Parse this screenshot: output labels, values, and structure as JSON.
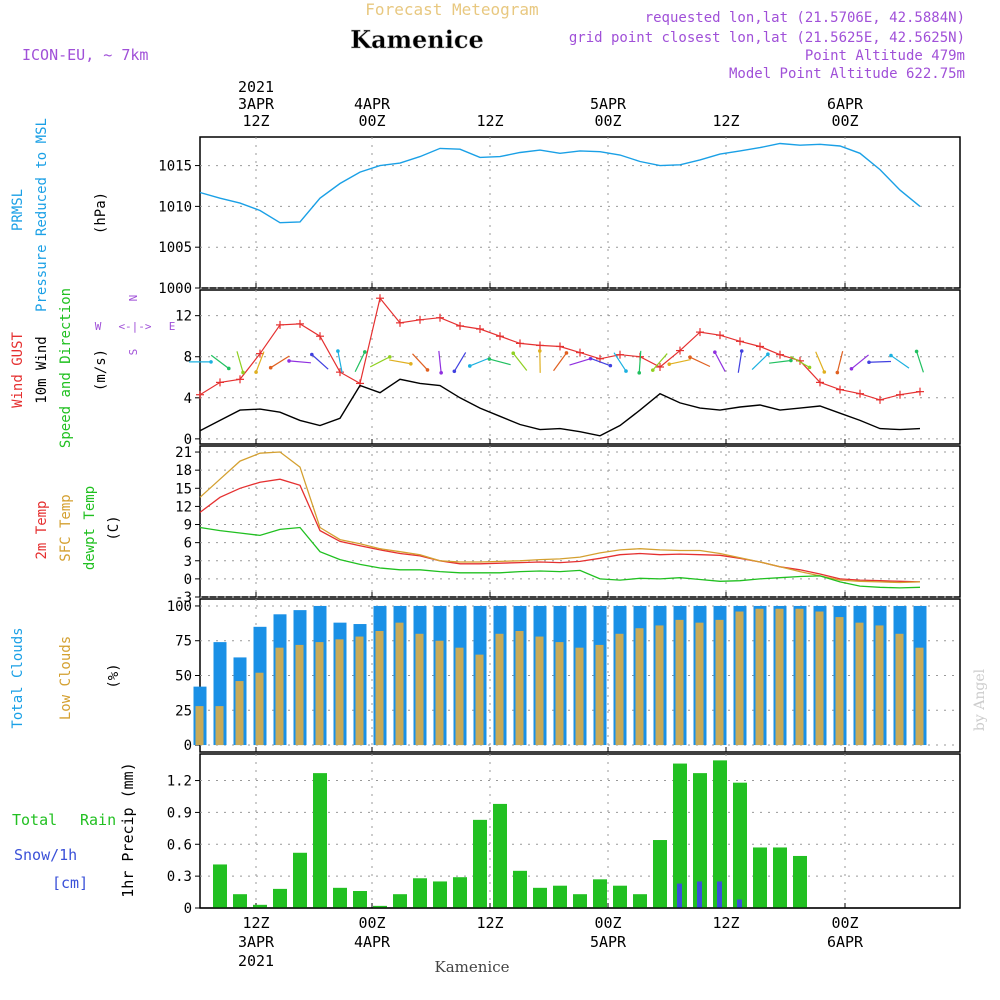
{
  "header": {
    "title": "Forecast Meteogram",
    "location": "Kamenice",
    "model": "ICON-EU, ~ 7km",
    "requested": "requested lon,lat (21.5706E, 42.5884N)",
    "gridpoint": "grid point closest lon,lat (21.5625E, 42.5625N)",
    "point_alt": "Point Altitude 479m",
    "model_alt": "Model Point Altitude 622.75m",
    "footer_name": "Kamenice",
    "watermark": "by Angel",
    "compass": {
      "n": "N",
      "s": "S",
      "w": "W",
      "e": "E",
      "arrows": "<-|->"
    }
  },
  "time_axis": {
    "top": [
      {
        "line1": "2021",
        "line2": "3APR",
        "line3": "12Z"
      },
      {
        "line1": "",
        "line2": "4APR",
        "line3": "00Z"
      },
      {
        "line1": "",
        "line2": "",
        "line3": "12Z"
      },
      {
        "line1": "",
        "line2": "5APR",
        "line3": "00Z"
      },
      {
        "line1": "",
        "line2": "",
        "line3": "12Z"
      },
      {
        "line1": "",
        "line2": "6APR",
        "line3": "00Z"
      }
    ],
    "bottom": [
      {
        "line1": "12Z",
        "line2": "3APR",
        "line3": "2021"
      },
      {
        "line1": "00Z",
        "line2": "4APR",
        "line3": ""
      },
      {
        "line1": "12Z",
        "line2": "",
        "line3": ""
      },
      {
        "line1": "00Z",
        "line2": "5APR",
        "line3": ""
      },
      {
        "line1": "12Z",
        "line2": "",
        "line3": ""
      },
      {
        "line1": "00Z",
        "line2": "6APR",
        "line3": ""
      }
    ]
  },
  "labels": {
    "p1": {
      "l1": "PRMSL",
      "l2": "Pressure Reduced to MSL",
      "unit": "(hPa)"
    },
    "p2": {
      "l1": "Wind GUST",
      "l2": "10m Wind",
      "l3": "Speed and Direction",
      "unit": "(m/s)"
    },
    "p3": {
      "l1": "2m Temp",
      "l2": "SFC Temp",
      "l3": "dewpt Temp",
      "unit": "(C)"
    },
    "p4": {
      "l1": "Total Clouds",
      "l2": "Low Clouds",
      "unit": "(%)"
    },
    "p5": {
      "l1": "Total",
      "l1b": "Rain",
      "l2": "Snow/1h",
      "l3": "[cm]",
      "unit": "1hr Precip (mm)"
    }
  },
  "colors": {
    "pressure": "#1aa0e6",
    "gust": "#e53030",
    "wind": "#000000",
    "t2m": "#e53030",
    "sfc": "#d4a030",
    "dew": "#20c020",
    "total_cloud": "#1a90e6",
    "low_cloud": "#c8aa58",
    "rain": "#22c022",
    "snow": "#3a50d8",
    "purple": "#a050d8",
    "title": "#e8c880"
  },
  "chart_data": [
    {
      "type": "line",
      "name": "pressure",
      "x_hours": [
        0,
        3,
        6,
        9,
        12,
        15,
        18,
        21,
        24,
        27,
        30,
        33,
        36,
        39,
        42,
        45,
        48,
        51,
        54,
        57,
        60,
        63,
        66,
        69,
        72,
        75,
        78,
        81,
        84,
        87,
        90,
        93,
        96,
        99,
        102,
        105,
        108
      ],
      "series": [
        {
          "values": [
            1011.7,
            1011.0,
            1010.4,
            1009.5,
            1008.0,
            1008.1,
            1011.0,
            1012.8,
            1014.2,
            1015.0,
            1015.3,
            1016.1,
            1017.1,
            1017.0,
            1016.0,
            1016.1,
            1016.6,
            1016.9,
            1016.5,
            1016.8,
            1016.7,
            1016.3,
            1015.5,
            1015.0,
            1015.1,
            1015.7,
            1016.4,
            1016.8,
            1017.2,
            1017.7,
            1017.5,
            1017.6,
            1017.4,
            1016.5,
            1014.5,
            1012.0,
            1010.0
          ]
        }
      ],
      "ylim": [
        1000,
        1018.5
      ],
      "yticks": [
        1000,
        1005,
        1010,
        1015
      ]
    },
    {
      "type": "line",
      "name": "wind",
      "x_hours": [
        0,
        3,
        6,
        9,
        12,
        15,
        18,
        21,
        24,
        27,
        30,
        33,
        36,
        39,
        42,
        45,
        48,
        51,
        54,
        57,
        60,
        63,
        66,
        69,
        72,
        75,
        78,
        81,
        84,
        87,
        90,
        93,
        96,
        99,
        102,
        105,
        108
      ],
      "series": [
        {
          "values": [
            4.3,
            5.5,
            5.8,
            8.3,
            11.1,
            11.2,
            10.0,
            6.5,
            5.4,
            13.7,
            11.3,
            11.6,
            11.8,
            11.0,
            10.7,
            10.0,
            9.3,
            9.1,
            9.0,
            8.4,
            7.8,
            8.2,
            8.0,
            7.0,
            8.6,
            10.4,
            10.1,
            9.5,
            9.0,
            8.2,
            7.6,
            5.5,
            4.8,
            4.4,
            3.8,
            4.3,
            4.6
          ]
        },
        {
          "values": [
            0.8,
            1.8,
            2.8,
            2.9,
            2.6,
            1.8,
            1.3,
            2.0,
            5.2,
            4.5,
            5.8,
            5.4,
            5.2,
            4.0,
            3.0,
            2.2,
            1.4,
            0.9,
            1.0,
            0.7,
            0.3,
            1.3,
            2.8,
            4.4,
            3.5,
            3.0,
            2.8,
            3.1,
            3.3,
            2.8,
            3.0,
            3.2,
            2.5,
            1.8,
            1.0,
            0.9,
            1.0
          ]
        }
      ],
      "ylim": [
        -0.5,
        14.5
      ],
      "yticks": [
        0,
        4,
        8,
        12
      ]
    },
    {
      "type": "line",
      "name": "temperature",
      "x_hours": [
        0,
        3,
        6,
        9,
        12,
        15,
        18,
        21,
        24,
        27,
        30,
        33,
        36,
        39,
        42,
        45,
        48,
        51,
        54,
        57,
        60,
        63,
        66,
        69,
        72,
        75,
        78,
        81,
        84,
        87,
        90,
        93,
        96,
        99,
        102,
        105,
        108
      ],
      "series": [
        {
          "values": [
            11.0,
            13.5,
            15.0,
            16.0,
            16.5,
            15.5,
            8.0,
            6.2,
            5.5,
            4.8,
            4.2,
            3.8,
            3.0,
            2.5,
            2.5,
            2.6,
            2.7,
            2.8,
            2.7,
            2.9,
            3.4,
            4.0,
            4.2,
            4.0,
            4.1,
            4.0,
            3.9,
            3.4,
            2.8,
            2.0,
            1.5,
            0.8,
            0.0,
            -0.2,
            -0.3,
            -0.4,
            -0.5
          ]
        },
        {
          "values": [
            13.5,
            16.5,
            19.5,
            20.8,
            21.0,
            18.5,
            8.5,
            6.5,
            5.8,
            5.0,
            4.5,
            4.0,
            3.0,
            2.8,
            2.8,
            2.9,
            3.0,
            3.2,
            3.3,
            3.6,
            4.3,
            4.8,
            5.0,
            4.8,
            4.7,
            4.7,
            4.2,
            3.5,
            2.8,
            2.0,
            1.2,
            0.5,
            -0.2,
            -0.4,
            -0.5,
            -0.6,
            -0.5
          ]
        },
        {
          "values": [
            8.5,
            8.0,
            7.6,
            7.2,
            8.2,
            8.5,
            4.5,
            3.2,
            2.4,
            1.8,
            1.5,
            1.5,
            1.2,
            1.0,
            1.0,
            1.0,
            1.2,
            1.3,
            1.2,
            1.4,
            0.0,
            -0.2,
            0.1,
            0.0,
            0.2,
            -0.1,
            -0.4,
            -0.3,
            0.0,
            0.2,
            0.4,
            0.5,
            -0.5,
            -1.2,
            -1.4,
            -1.5,
            -1.4
          ]
        }
      ],
      "ylim": [
        -3,
        22
      ],
      "yticks": [
        -3,
        0,
        3,
        6,
        9,
        12,
        15,
        18,
        21
      ]
    },
    {
      "type": "bar",
      "name": "clouds",
      "x_hours": [
        0,
        3,
        6,
        9,
        12,
        15,
        18,
        21,
        24,
        27,
        30,
        33,
        36,
        39,
        42,
        45,
        48,
        51,
        54,
        57,
        60,
        63,
        66,
        69,
        72,
        75,
        78,
        81,
        84,
        87,
        90,
        93,
        96,
        99,
        102,
        105,
        108
      ],
      "series": [
        {
          "values": [
            42,
            74,
            63,
            85,
            94,
            97,
            100,
            88,
            87,
            100,
            100,
            100,
            100,
            100,
            100,
            100,
            100,
            100,
            100,
            100,
            100,
            100,
            100,
            100,
            100,
            100,
            100,
            100,
            100,
            100,
            100,
            100,
            100,
            100,
            100,
            100,
            100
          ]
        },
        {
          "values": [
            28,
            28,
            46,
            52,
            70,
            72,
            74,
            76,
            78,
            82,
            88,
            80,
            75,
            70,
            65,
            80,
            82,
            78,
            74,
            70,
            72,
            80,
            84,
            86,
            90,
            88,
            90,
            96,
            98,
            98,
            98,
            96,
            92,
            88,
            86,
            80,
            70
          ]
        }
      ],
      "ylim": [
        -5,
        105
      ],
      "yticks": [
        0,
        25,
        50,
        75,
        100
      ]
    },
    {
      "type": "bar",
      "name": "precipitation",
      "x_hours": [
        3,
        6,
        9,
        12,
        15,
        18,
        21,
        24,
        27,
        30,
        33,
        36,
        39,
        42,
        45,
        48,
        51,
        54,
        57,
        60,
        63,
        66,
        69,
        72,
        75,
        78,
        81,
        84,
        87,
        90
      ],
      "series": [
        {
          "values": [
            0.41,
            0.13,
            0.03,
            0.18,
            0.52,
            1.27,
            0.19,
            0.16,
            0.02,
            0.13,
            0.28,
            0.25,
            0.29,
            0.83,
            0.98,
            0.35,
            0.19,
            0.21,
            0.13,
            0.27,
            0.21,
            0.13,
            0.64,
            1.36,
            1.27,
            1.39,
            1.18,
            0.57,
            0.57,
            0.49
          ]
        },
        {
          "values": [
            0,
            0,
            0,
            0,
            0,
            0,
            0,
            0,
            0,
            0,
            0,
            0,
            0,
            0,
            0,
            0,
            0,
            0,
            0,
            0,
            0,
            0,
            0,
            0.23,
            0.25,
            0.25,
            0.08,
            0,
            0,
            0
          ]
        }
      ],
      "ylim": [
        0,
        1.45
      ],
      "yticks": [
        0,
        0.3,
        0.6,
        0.9,
        1.2
      ]
    }
  ]
}
